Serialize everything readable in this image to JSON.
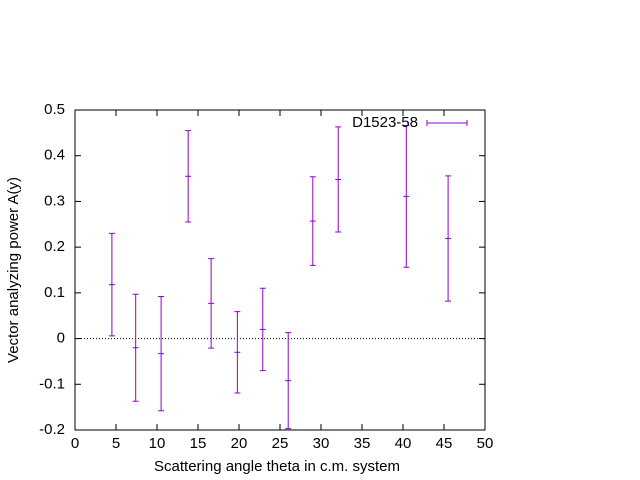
{
  "chart_data": {
    "type": "errorbar",
    "xlabel": "Scattering angle theta in c.m. system",
    "ylabel": "Vector analyzing power A(y)",
    "xlim": [
      0,
      50
    ],
    "xticks": [
      0,
      5,
      10,
      15,
      20,
      25,
      30,
      35,
      40,
      45,
      50
    ],
    "ylim": [
      -0.2,
      0.5
    ],
    "yticks": [
      -0.2,
      -0.1,
      0,
      0.1,
      0.2,
      0.3,
      0.4,
      0.5
    ],
    "zero_line": true,
    "legend": "upper right",
    "series": [
      {
        "name": "D1523-58",
        "color": "#9400d3",
        "x": [
          4.5,
          7.4,
          10.5,
          13.8,
          16.6,
          19.8,
          22.9,
          26.0,
          29.0,
          32.1,
          40.4,
          45.5
        ],
        "values": [
          0.118,
          -0.02,
          -0.033,
          0.355,
          0.077,
          -0.03,
          0.02,
          -0.092,
          0.257,
          0.348,
          0.311,
          0.219
        ],
        "errors": [
          0.112,
          0.117,
          0.125,
          0.1,
          0.098,
          0.089,
          0.09,
          0.105,
          0.097,
          0.115,
          0.155,
          0.137
        ]
      }
    ]
  }
}
